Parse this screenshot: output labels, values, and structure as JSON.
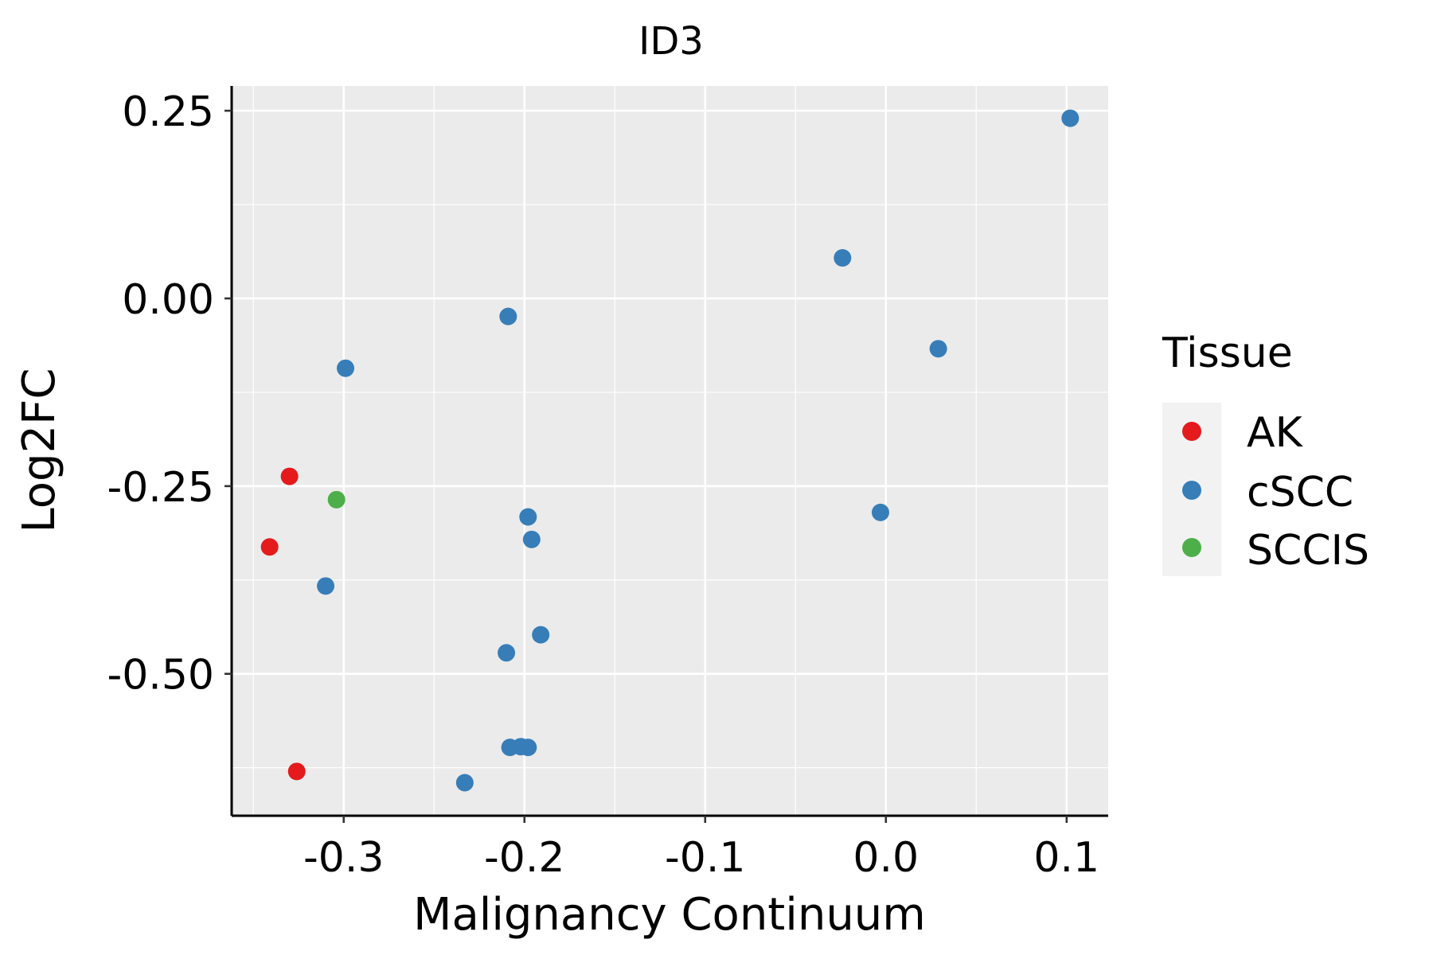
{
  "chart_data": {
    "type": "scatter",
    "title": "ID3",
    "xlabel": "Malignancy Continuum",
    "ylabel": "Log2FC",
    "xlim": [
      -0.362,
      0.123
    ],
    "ylim": [
      -0.689,
      0.283
    ],
    "x_ticks": [
      -0.3,
      -0.2,
      -0.1,
      0.0,
      0.1
    ],
    "x_tick_labels": [
      "-0.3",
      "-0.2",
      "-0.1",
      "0.0",
      "0.1"
    ],
    "y_ticks": [
      -0.5,
      -0.25,
      0.0,
      0.25
    ],
    "y_tick_labels": [
      "-0.50",
      "-0.25",
      "0.00",
      "0.25"
    ],
    "grid": true,
    "legend": {
      "title": "Tissue",
      "placement": "right",
      "entries": [
        {
          "name": "AK",
          "color": "#E41A1C"
        },
        {
          "name": "cSCC",
          "color": "#377EB8"
        },
        {
          "name": "SCCIS",
          "color": "#4DAF4A"
        }
      ]
    },
    "series": [
      {
        "name": "AK",
        "color": "#E41A1C",
        "x": [
          -0.33,
          -0.341,
          -0.326
        ],
        "y": [
          -0.237,
          -0.331,
          -0.63
        ]
      },
      {
        "name": "cSCC",
        "color": "#377EB8",
        "x": [
          0.102,
          -0.024,
          0.029,
          -0.209,
          -0.299,
          -0.003,
          -0.198,
          -0.196,
          -0.31,
          -0.191,
          -0.21,
          -0.208,
          -0.202,
          -0.198,
          -0.233
        ],
        "y": [
          0.24,
          0.054,
          -0.067,
          -0.024,
          -0.093,
          -0.285,
          -0.291,
          -0.321,
          -0.383,
          -0.448,
          -0.472,
          -0.598,
          -0.597,
          -0.598,
          -0.645
        ]
      },
      {
        "name": "SCCIS",
        "color": "#4DAF4A",
        "x": [
          -0.304
        ],
        "y": [
          -0.268
        ]
      }
    ]
  }
}
